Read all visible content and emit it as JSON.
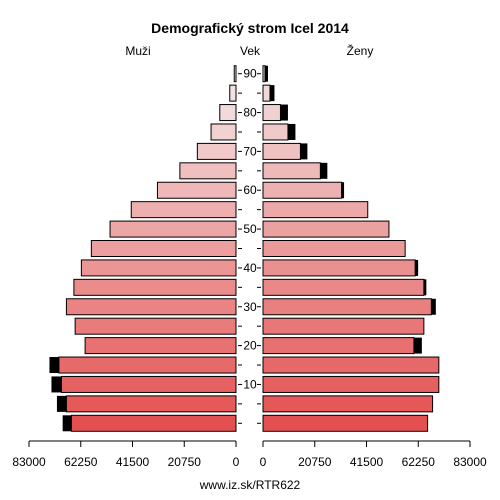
{
  "chart_data": {
    "type": "bar",
    "title": "Demografický strom Icel 2014",
    "left_label": "Muži",
    "center_label": "Vek",
    "right_label": "Ženy",
    "source": "www.iz.sk/RTR622",
    "xlim": [
      0,
      83000
    ],
    "x_ticks_left": [
      "83000",
      "62250",
      "41500",
      "20750",
      "0"
    ],
    "x_ticks_right": [
      "0",
      "20750",
      "41500",
      "62250",
      "83000"
    ],
    "age_ticks": [
      "10",
      "20",
      "30",
      "40",
      "50",
      "60",
      "70",
      "80",
      "90"
    ],
    "categories": [
      "0-4",
      "5-9",
      "10-14",
      "15-19",
      "20-24",
      "25-29",
      "30-34",
      "35-39",
      "40-44",
      "45-49",
      "50-54",
      "55-59",
      "60-64",
      "65-69",
      "70-74",
      "75-79",
      "80-84",
      "85-89",
      "90+"
    ],
    "series": [
      {
        "name": "Muži",
        "values": [
          66000,
          68000,
          70000,
          71000,
          60500,
          64500,
          68000,
          65000,
          62000,
          58000,
          50500,
          42000,
          31500,
          22500,
          15500,
          10000,
          6500,
          2500,
          700
        ],
        "extra": [
          3500,
          3800,
          4000,
          3800,
          0,
          0,
          0,
          0,
          0,
          0,
          0,
          0,
          0,
          0,
          0,
          0,
          0,
          0,
          0
        ]
      },
      {
        "name": "Ženy",
        "values": [
          66000,
          68000,
          70500,
          70500,
          60500,
          64500,
          67500,
          64500,
          61000,
          57000,
          50500,
          42000,
          31500,
          23000,
          15000,
          10000,
          7000,
          2800,
          800
        ],
        "extra": [
          0,
          0,
          0,
          0,
          3200,
          0,
          1800,
          1000,
          1200,
          0,
          0,
          0,
          1000,
          2800,
          2800,
          3000,
          3000,
          1800,
          1200
        ]
      }
    ]
  }
}
